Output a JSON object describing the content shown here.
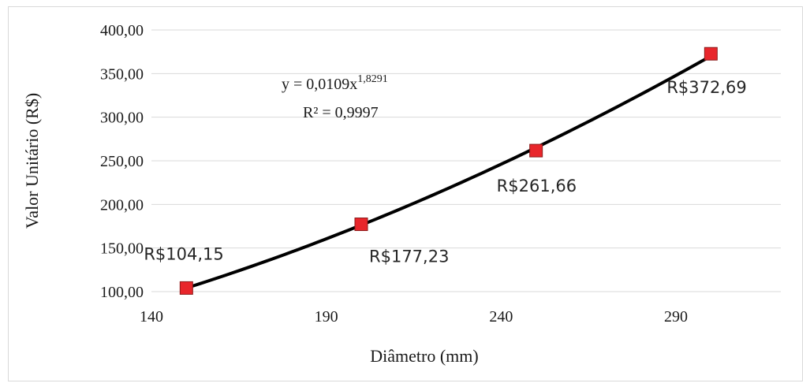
{
  "chart_data": {
    "type": "scatter",
    "xlabel": "Diâmetro  (mm)",
    "ylabel": "Valor  Unitário  (R$)",
    "xlim": [
      140,
      320
    ],
    "ylim": [
      100,
      400
    ],
    "x_ticks": [
      "140",
      "190",
      "240",
      "290"
    ],
    "y_ticks": [
      "100,00",
      "150,00",
      "200,00",
      "250,00",
      "300,00",
      "350,00",
      "400,00"
    ],
    "grid": "horizontal",
    "series": [
      {
        "points": [
          {
            "x": 150,
            "y": 104.15,
            "label": "R$104,15"
          },
          {
            "x": 200,
            "y": 177.23,
            "label": "R$177,23"
          },
          {
            "x": 250,
            "y": 261.66,
            "label": "R$261,66"
          },
          {
            "x": 300,
            "y": 372.69,
            "label": "R$372,69"
          }
        ],
        "marker_color": "#e8262b",
        "marker_edge": "#8b1a1a"
      }
    ],
    "trendline": {
      "type": "power",
      "coefficient": 0.0109,
      "exponent": 1.8291,
      "color": "#000000",
      "equation_prefix": "y = 0,0109x",
      "equation_exponent": "1,8291",
      "r_squared": "R² = 0,9997"
    }
  }
}
